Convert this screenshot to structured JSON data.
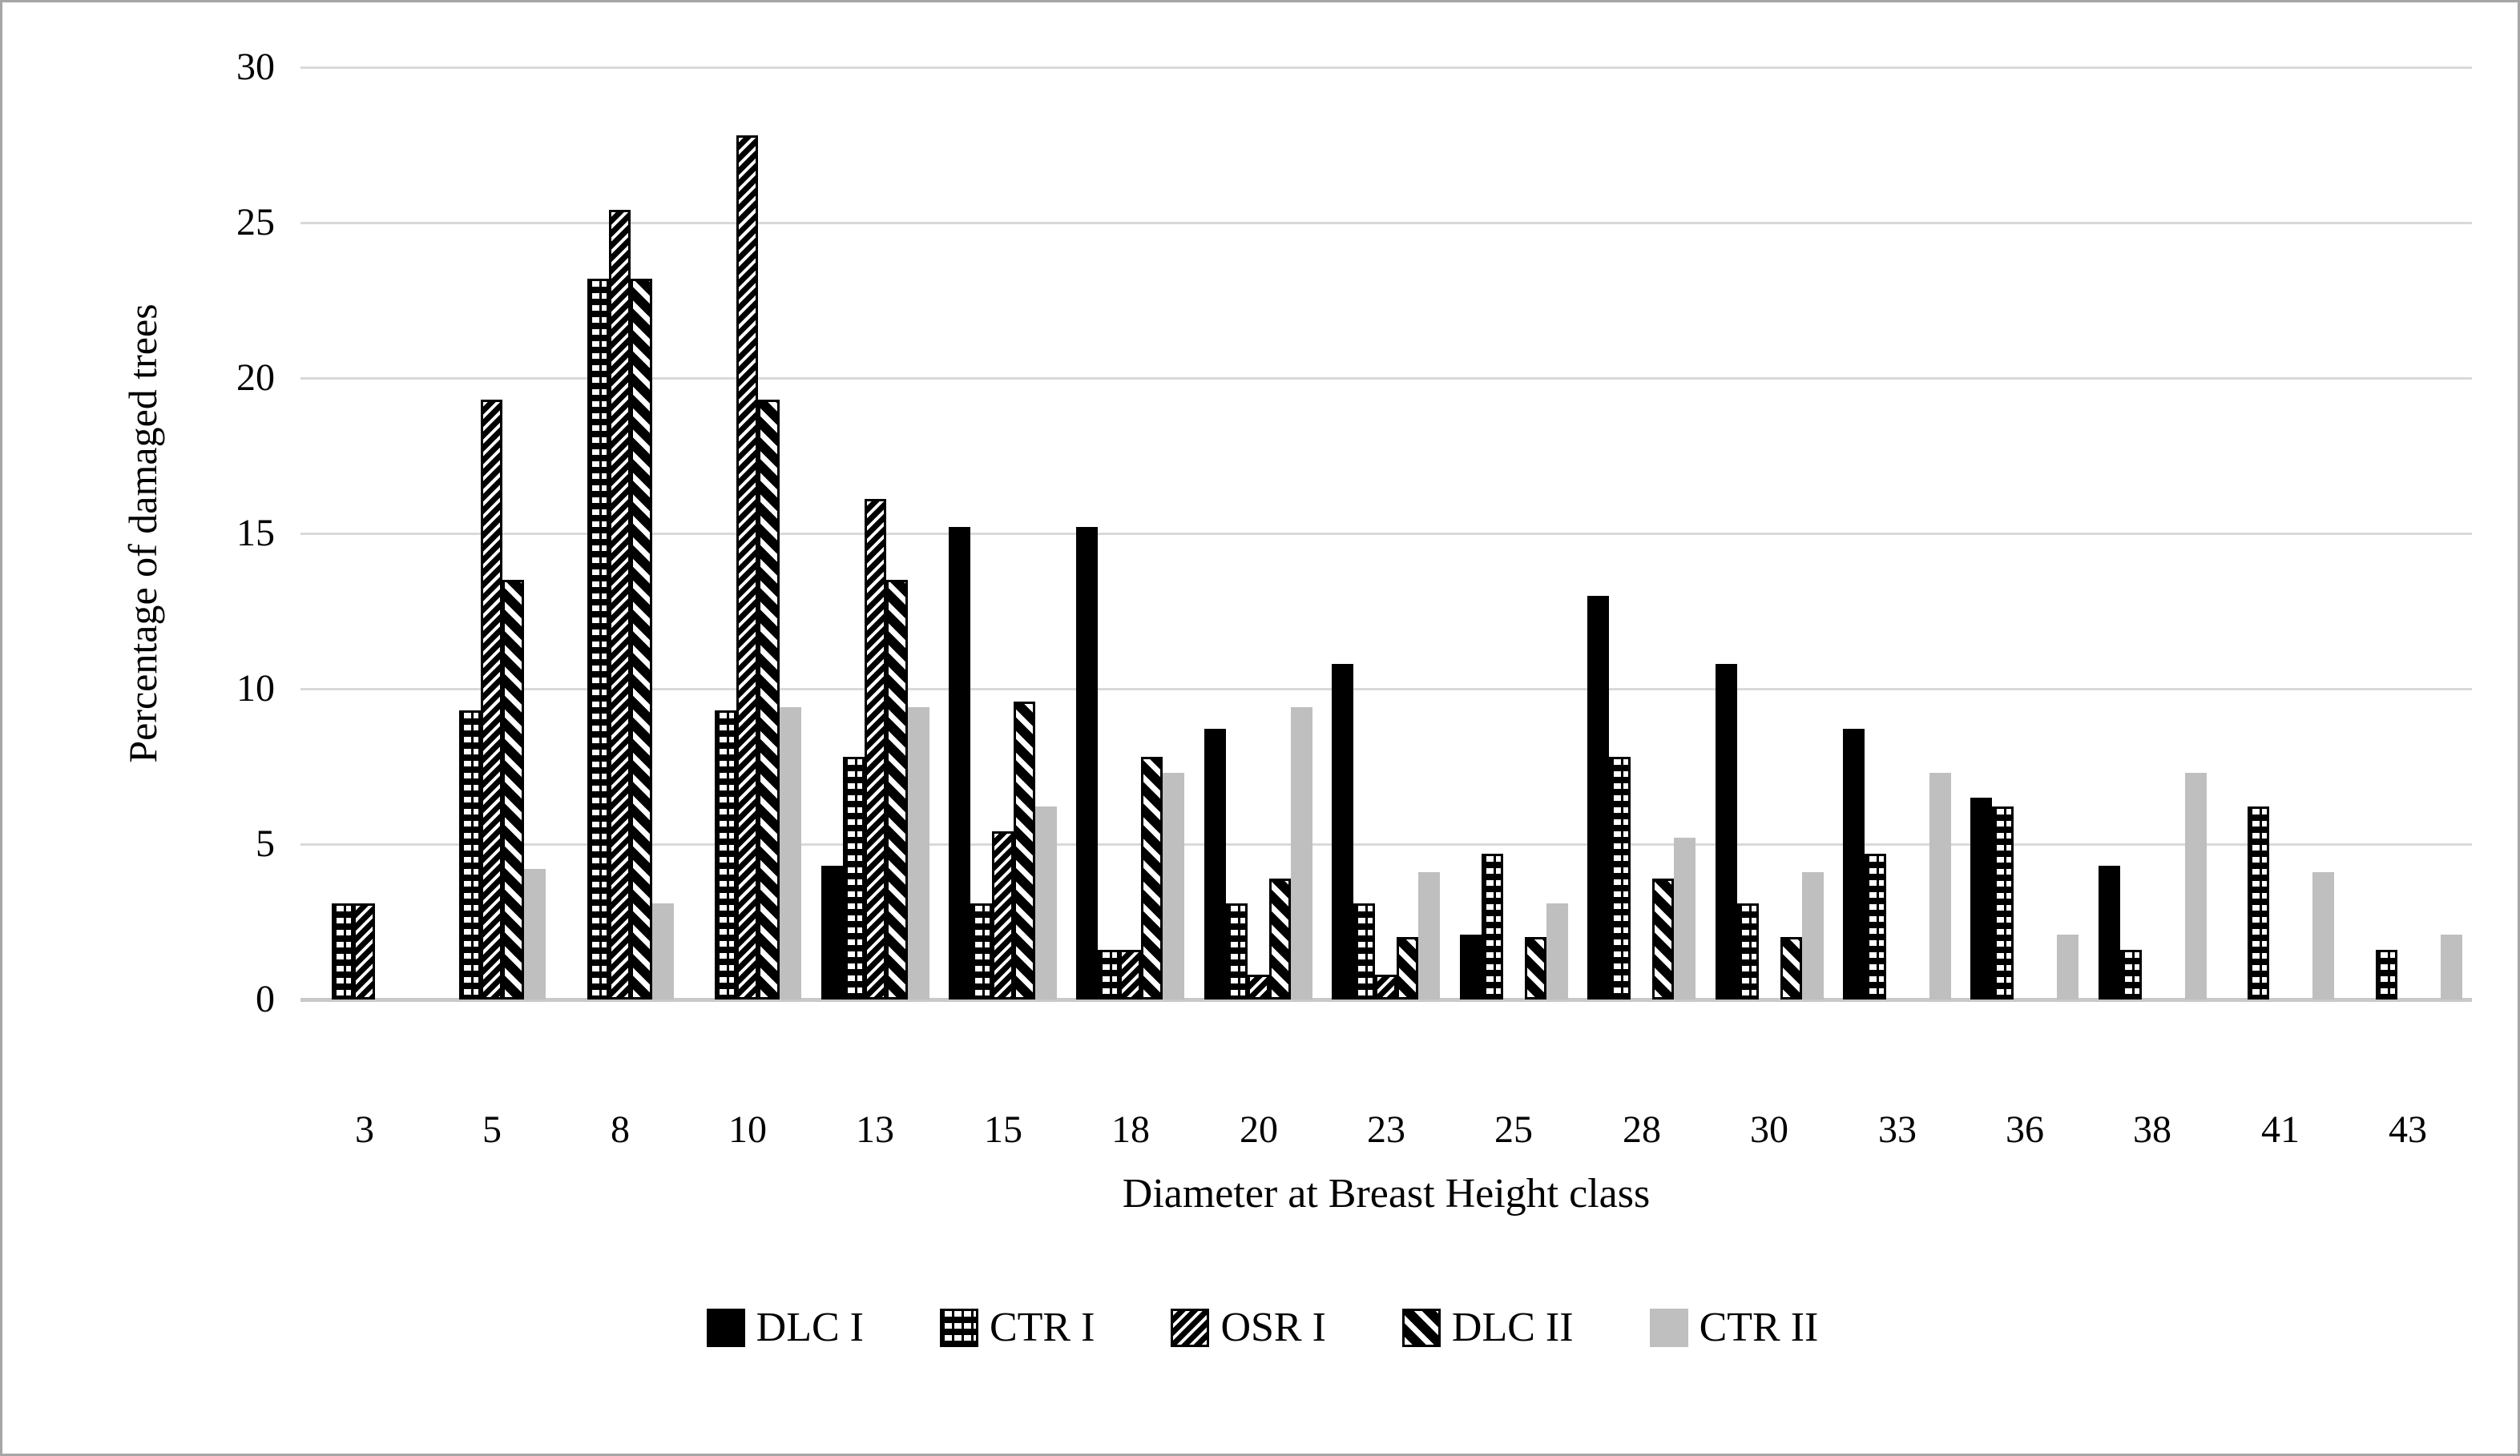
{
  "figure": {
    "background": "#ffffff",
    "border_color": "#a6a6a6"
  },
  "axes": {
    "y_title": "Percentage of damaged trees",
    "x_title": "Diameter at Breast Height class",
    "y_ticks": [
      "30",
      "25",
      "20",
      "15",
      "10",
      "5",
      "0"
    ],
    "x_tick_labels": [
      "3",
      "5",
      "8",
      "10",
      "13",
      "15",
      "18",
      "20",
      "23",
      "25",
      "28",
      "30",
      "33",
      "36",
      "38",
      "41",
      "43"
    ]
  },
  "legend": [
    {
      "label": "DLC I",
      "swatch": "solid-black"
    },
    {
      "label": "CTR I",
      "swatch": "brick-pattern"
    },
    {
      "label": "OSR I",
      "swatch": "fine-diagonal-pattern"
    },
    {
      "label": "DLC II",
      "swatch": "bold-diagonal-pattern"
    },
    {
      "label": "CTR II",
      "swatch": "solid-gray"
    }
  ],
  "colors": {
    "bar_black": "#000000",
    "bar_gray": "#bfbfbf",
    "gridline": "#d9d9d9",
    "axis_line": "#c9c9c9",
    "text": "#000000"
  },
  "chart_data": {
    "type": "bar",
    "title": "",
    "xlabel": "Diameter at Breast Height class",
    "ylabel": "Percentage of damaged trees",
    "ylim": [
      0,
      30
    ],
    "y_tick_step": 5,
    "grid": true,
    "legend_position": "bottom",
    "categories": [
      3,
      5,
      8,
      10,
      13,
      15,
      18,
      20,
      23,
      25,
      28,
      30,
      33,
      36,
      38,
      41,
      43
    ],
    "series": [
      {
        "name": "DLC I",
        "values": [
          0,
          0,
          0,
          0,
          4.3,
          15.2,
          15.2,
          8.7,
          10.8,
          2.1,
          13.0,
          10.8,
          8.7,
          6.5,
          4.3,
          0,
          0
        ]
      },
      {
        "name": "CTR I",
        "values": [
          3.1,
          9.3,
          23.2,
          9.3,
          7.8,
          3.1,
          1.6,
          3.1,
          3.1,
          4.7,
          7.8,
          3.1,
          4.7,
          6.2,
          1.6,
          6.2,
          1.6
        ]
      },
      {
        "name": "OSR I",
        "values": [
          3.1,
          19.3,
          25.4,
          27.8,
          16.1,
          5.4,
          1.6,
          0.8,
          0.8,
          0,
          0,
          0,
          0,
          0,
          0,
          0,
          0
        ]
      },
      {
        "name": "DLC II",
        "values": [
          0,
          13.5,
          23.2,
          19.3,
          13.5,
          9.6,
          7.8,
          3.9,
          2.0,
          2.0,
          3.9,
          2.0,
          0,
          0,
          0,
          0,
          0
        ]
      },
      {
        "name": "CTR II",
        "values": [
          0,
          4.2,
          3.1,
          9.4,
          9.4,
          6.2,
          7.3,
          9.4,
          4.1,
          3.1,
          5.2,
          4.1,
          7.3,
          2.1,
          7.3,
          4.1,
          2.1
        ]
      }
    ]
  }
}
